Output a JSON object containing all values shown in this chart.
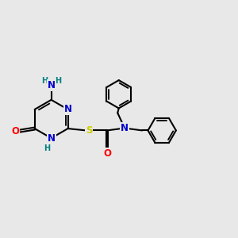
{
  "bg_color": "#e8e8e8",
  "bond_color": "#000000",
  "bond_width": 1.5,
  "atom_colors": {
    "N": "#0000cd",
    "O": "#ff0000",
    "S": "#cccc00",
    "H": "#008080",
    "C": "#000000"
  },
  "font_size": 8.5,
  "fig_size": [
    3.0,
    3.0
  ],
  "dpi": 100
}
